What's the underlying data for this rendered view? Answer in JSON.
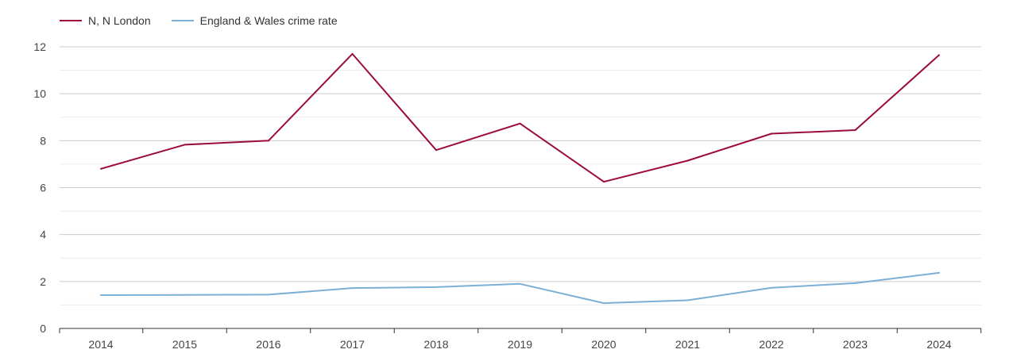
{
  "chart_data": {
    "type": "line",
    "categories": [
      "2014",
      "2015",
      "2016",
      "2017",
      "2018",
      "2019",
      "2020",
      "2021",
      "2022",
      "2023",
      "2024"
    ],
    "series": [
      {
        "name": "N, N London",
        "color": "#9b0d37",
        "values": [
          6.8,
          7.83,
          8.0,
          11.7,
          7.6,
          8.73,
          6.25,
          7.15,
          8.3,
          8.45,
          11.65
        ]
      },
      {
        "name": "England & Wales crime rate",
        "color": "#7bafd4",
        "values": [
          1.42,
          1.43,
          1.44,
          1.72,
          1.76,
          1.9,
          1.08,
          1.2,
          1.73,
          1.93,
          2.37
        ]
      }
    ],
    "yticks": [
      "0",
      "2",
      "4",
      "6",
      "8",
      "10",
      "12"
    ],
    "ylim": [
      0,
      12
    ],
    "legend_position": "top-left",
    "grid": true
  }
}
